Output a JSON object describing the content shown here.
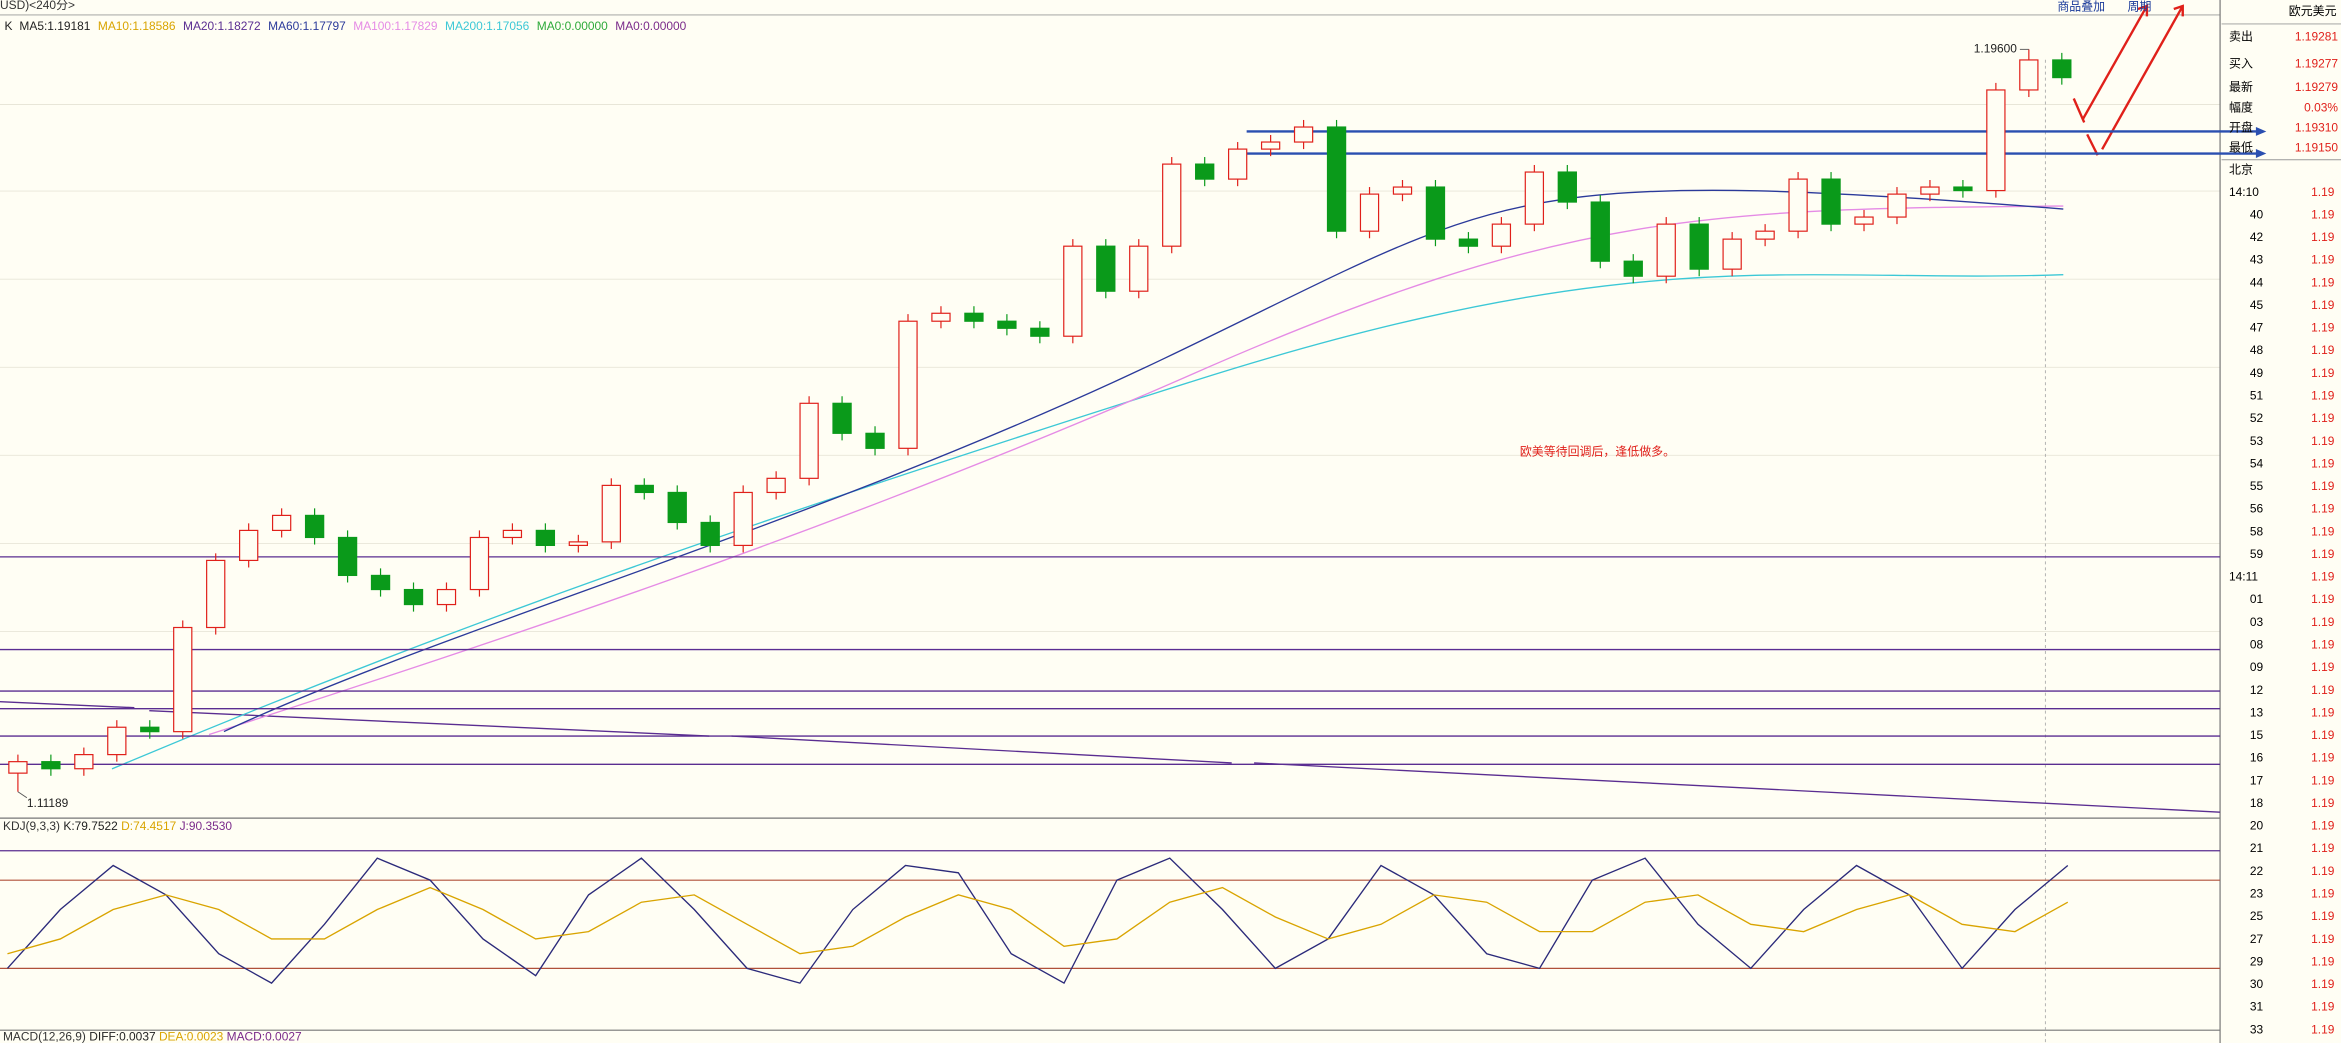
{
  "header": {
    "symbol": "USD)<240分>",
    "k": "K",
    "ma": [
      {
        "label": "MA5:1.19181",
        "color": "#222222"
      },
      {
        "label": "MA10:1.18586",
        "color": "#d9a400"
      },
      {
        "label": "MA20:1.18272",
        "color": "#5a2d91"
      },
      {
        "label": "MA60:1.17797",
        "color": "#2b3a9a"
      },
      {
        "label": "MA100:1.17829",
        "color": "#e58be5"
      },
      {
        "label": "MA200:1.17056",
        "color": "#3cc8d6"
      },
      {
        "label": "MA0:0.00000",
        "color": "#2eaa3a"
      },
      {
        "label": "MA0:0.00000",
        "color": "#7a2a8a"
      }
    ],
    "buttons": [
      "商品叠加",
      "周期"
    ]
  },
  "chart_data": {
    "type": "candlestick",
    "ylim": [
      1.1089,
      1.1999
    ],
    "up_color": "#e0201a",
    "down_color": "#0a9a1a",
    "candles": [
      [
        1.114,
        1.1161,
        1.11189,
        1.1153
      ],
      [
        1.1153,
        1.1161,
        1.1137,
        1.1145
      ],
      [
        1.1145,
        1.1169,
        1.1137,
        1.1161
      ],
      [
        1.1161,
        1.12,
        1.1153,
        1.1192
      ],
      [
        1.1192,
        1.12,
        1.1179,
        1.1187
      ],
      [
        1.1187,
        1.1313,
        1.1179,
        1.1305
      ],
      [
        1.1305,
        1.1389,
        1.1297,
        1.1381
      ],
      [
        1.1381,
        1.1423,
        1.1373,
        1.1415
      ],
      [
        1.1415,
        1.144,
        1.1407,
        1.1432
      ],
      [
        1.1432,
        1.144,
        1.1399,
        1.1407
      ],
      [
        1.1407,
        1.1415,
        1.1356,
        1.1364
      ],
      [
        1.1364,
        1.1372,
        1.134,
        1.1348
      ],
      [
        1.1348,
        1.1356,
        1.1323,
        1.1331
      ],
      [
        1.1331,
        1.1356,
        1.1323,
        1.1348
      ],
      [
        1.1348,
        1.1415,
        1.134,
        1.1407
      ],
      [
        1.1407,
        1.1423,
        1.1399,
        1.1415
      ],
      [
        1.1415,
        1.1423,
        1.139,
        1.1398
      ],
      [
        1.1398,
        1.141,
        1.139,
        1.1402
      ],
      [
        1.1402,
        1.1474,
        1.1394,
        1.1466
      ],
      [
        1.1466,
        1.1474,
        1.145,
        1.1458
      ],
      [
        1.1458,
        1.1466,
        1.1416,
        1.1424
      ],
      [
        1.1424,
        1.1432,
        1.139,
        1.1398
      ],
      [
        1.1398,
        1.1466,
        1.139,
        1.1458
      ],
      [
        1.1458,
        1.1482,
        1.145,
        1.1474
      ],
      [
        1.1474,
        1.1567,
        1.1466,
        1.1559
      ],
      [
        1.1559,
        1.1567,
        1.1517,
        1.1525
      ],
      [
        1.1525,
        1.1533,
        1.15,
        1.1508
      ],
      [
        1.1508,
        1.166,
        1.15,
        1.1652
      ],
      [
        1.1652,
        1.1669,
        1.1644,
        1.1661
      ],
      [
        1.1661,
        1.1669,
        1.1644,
        1.1652
      ],
      [
        1.1652,
        1.166,
        1.1636,
        1.1644
      ],
      [
        1.1644,
        1.1652,
        1.1627,
        1.1635
      ],
      [
        1.1635,
        1.1745,
        1.1627,
        1.1737
      ],
      [
        1.1737,
        1.1745,
        1.1678,
        1.1686
      ],
      [
        1.1686,
        1.1745,
        1.1678,
        1.1737
      ],
      [
        1.1737,
        1.1838,
        1.1729,
        1.183
      ],
      [
        1.183,
        1.1838,
        1.1805,
        1.1813
      ],
      [
        1.1813,
        1.1855,
        1.1805,
        1.1847
      ],
      [
        1.1847,
        1.1863,
        1.1839,
        1.1855
      ],
      [
        1.1855,
        1.188,
        1.1847,
        1.1872
      ],
      [
        1.1872,
        1.188,
        1.1746,
        1.1754
      ],
      [
        1.1754,
        1.1804,
        1.1746,
        1.1796
      ],
      [
        1.1796,
        1.1812,
        1.1788,
        1.1804
      ],
      [
        1.1804,
        1.1812,
        1.1737,
        1.1745
      ],
      [
        1.1745,
        1.1753,
        1.1729,
        1.1737
      ],
      [
        1.1737,
        1.177,
        1.1729,
        1.1762
      ],
      [
        1.1762,
        1.1829,
        1.1754,
        1.1821
      ],
      [
        1.1821,
        1.1829,
        1.1779,
        1.1787
      ],
      [
        1.1787,
        1.1795,
        1.1712,
        1.172
      ],
      [
        1.172,
        1.1728,
        1.1695,
        1.1703
      ],
      [
        1.1703,
        1.177,
        1.1695,
        1.1762
      ],
      [
        1.1762,
        1.177,
        1.1703,
        1.1711
      ],
      [
        1.1711,
        1.1753,
        1.1703,
        1.1745
      ],
      [
        1.1745,
        1.1762,
        1.1737,
        1.1754
      ],
      [
        1.1754,
        1.1821,
        1.1746,
        1.1813
      ],
      [
        1.1813,
        1.1821,
        1.1754,
        1.1762
      ],
      [
        1.1762,
        1.1778,
        1.1754,
        1.177
      ],
      [
        1.177,
        1.1804,
        1.1762,
        1.1796
      ],
      [
        1.1796,
        1.1812,
        1.1788,
        1.1804
      ],
      [
        1.1804,
        1.1812,
        1.1792,
        1.18
      ],
      [
        1.18,
        1.1922,
        1.1792,
        1.1914
      ],
      [
        1.1914,
        1.196,
        1.1906,
        1.1948
      ],
      [
        1.1948,
        1.1956,
        1.192,
        1.1928
      ]
    ],
    "price_labels": [
      {
        "value": 1.196,
        "label": "1.19600",
        "candle": 61
      },
      {
        "value": 1.11189,
        "label": "1.11189",
        "candle": 0
      }
    ],
    "levels": [
      1.1867,
      1.1842
    ],
    "level_color": "#2a4fb0",
    "hlines": [
      1.1385,
      1.128,
      1.1233,
      1.1213,
      1.1182,
      1.115
    ],
    "hline_color": "#5a2d91",
    "annotation": "欧美等待回调后，逢低做多。"
  },
  "kdj": {
    "label": "KDJ(9,3,3)",
    "k_label": "K:79.7522",
    "d_label": "D:74.4517",
    "j_label": "J:90.3530",
    "ylim": [
      -20,
      110
    ],
    "levels": [
      100,
      80,
      20
    ],
    "k": [
      20,
      60,
      90,
      70,
      30,
      10,
      50,
      95,
      80,
      40,
      15,
      70,
      95,
      60,
      20,
      10,
      60,
      90,
      85,
      30,
      10,
      80,
      95,
      60,
      20,
      40,
      90,
      70,
      30,
      20,
      80,
      95,
      50,
      20,
      60,
      90,
      70,
      20,
      60,
      90
    ],
    "d": [
      30,
      40,
      60,
      70,
      60,
      40,
      40,
      60,
      75,
      60,
      40,
      45,
      65,
      70,
      50,
      30,
      35,
      55,
      70,
      60,
      35,
      40,
      65,
      75,
      55,
      40,
      50,
      70,
      65,
      45,
      45,
      65,
      70,
      50,
      45,
      60,
      70,
      50,
      45,
      65
    ]
  },
  "macd": {
    "label": "MACD(12,26,9)",
    "diff": "DIFF:0.0037",
    "dea": "DEA:0.0023",
    "macd": "MACD:0.0027"
  },
  "quote": {
    "title": "欧元美元",
    "rows": [
      {
        "label": "卖出",
        "value": "1.19281"
      },
      {
        "label": "买入",
        "value": "1.19277"
      },
      {
        "label": "最新",
        "value": "1.19279"
      },
      {
        "label": "幅度",
        "value": "0.03%"
      },
      {
        "label": "开盘",
        "value": "1.19310"
      },
      {
        "label": "最低",
        "value": "1.19150"
      }
    ],
    "city": "北京",
    "ticks": [
      {
        "time": "14:10",
        "price": "1.19"
      },
      {
        "time": "40",
        "price": "1.19"
      },
      {
        "time": "42",
        "price": "1.19"
      },
      {
        "time": "43",
        "price": "1.19"
      },
      {
        "time": "44",
        "price": "1.19"
      },
      {
        "time": "45",
        "price": "1.19"
      },
      {
        "time": "47",
        "price": "1.19"
      },
      {
        "time": "48",
        "price": "1.19"
      },
      {
        "time": "49",
        "price": "1.19"
      },
      {
        "time": "51",
        "price": "1.19"
      },
      {
        "time": "52",
        "price": "1.19"
      },
      {
        "time": "53",
        "price": "1.19"
      },
      {
        "time": "54",
        "price": "1.19"
      },
      {
        "time": "55",
        "price": "1.19"
      },
      {
        "time": "56",
        "price": "1.19"
      },
      {
        "time": "58",
        "price": "1.19"
      },
      {
        "time": "59",
        "price": "1.19"
      },
      {
        "time": "14:11",
        "price": "1.19"
      },
      {
        "time": "01",
        "price": "1.19"
      },
      {
        "time": "03",
        "price": "1.19"
      },
      {
        "time": "08",
        "price": "1.19"
      },
      {
        "time": "09",
        "price": "1.19"
      },
      {
        "time": "12",
        "price": "1.19"
      },
      {
        "time": "13",
        "price": "1.19"
      },
      {
        "time": "15",
        "price": "1.19"
      },
      {
        "time": "16",
        "price": "1.19"
      },
      {
        "time": "17",
        "price": "1.19"
      },
      {
        "time": "18",
        "price": "1.19"
      },
      {
        "time": "20",
        "price": "1.19"
      },
      {
        "time": "21",
        "price": "1.19"
      },
      {
        "time": "22",
        "price": "1.19"
      },
      {
        "time": "23",
        "price": "1.19"
      },
      {
        "time": "25",
        "price": "1.19"
      },
      {
        "time": "27",
        "price": "1.19"
      },
      {
        "time": "29",
        "price": "1.19"
      },
      {
        "time": "30",
        "price": "1.19"
      },
      {
        "time": "31",
        "price": "1.19"
      },
      {
        "time": "33",
        "price": "1.19"
      }
    ]
  }
}
